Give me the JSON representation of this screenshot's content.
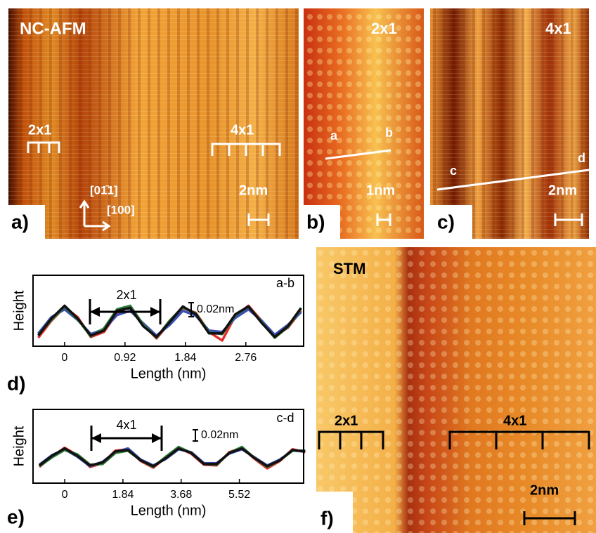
{
  "panels": {
    "a": {
      "letter": "a)",
      "title": "NC-AFM",
      "left_label": "2x1",
      "right_label": "4x1",
      "dir1": "[01̄1]",
      "dir2": "[100]",
      "scale": "2nm"
    },
    "b": {
      "letter": "b)",
      "title": "2x1",
      "start": "a",
      "end": "b",
      "scale": "1nm"
    },
    "c": {
      "letter": "c)",
      "title": "4x1",
      "start": "c",
      "end": "d",
      "scale": "2nm"
    },
    "f": {
      "letter": "f)",
      "title": "STM",
      "left_label": "2x1",
      "right_label": "4x1",
      "scale": "2nm"
    }
  },
  "chart_data": [
    {
      "type": "line",
      "letter": "d)",
      "xlabel": "Length (nm)",
      "ylabel": "Height",
      "annotation": "2x1",
      "scale_label": "0.02nm",
      "pair": "a-b",
      "xlim": [
        -0.48,
        3.64
      ],
      "ylim": [
        0,
        0.1
      ],
      "xticks": [
        0,
        0.92,
        1.84,
        2.76
      ],
      "x": [
        -0.4,
        -0.2,
        0,
        0.2,
        0.4,
        0.6,
        0.8,
        1.0,
        1.2,
        1.4,
        1.6,
        1.8,
        2.0,
        2.2,
        2.4,
        2.6,
        2.8,
        3.0,
        3.2,
        3.4,
        3.6
      ],
      "series": [
        {
          "color": "#e0302a",
          "values": [
            0.012,
            0.036,
            0.055,
            0.041,
            0.013,
            0.02,
            0.047,
            0.056,
            0.03,
            0.011,
            0.033,
            0.054,
            0.047,
            0.02,
            0.008,
            0.043,
            0.057,
            0.036,
            0.014,
            0.026,
            0.05
          ]
        },
        {
          "color": "#3a50b0",
          "values": [
            0.018,
            0.041,
            0.052,
            0.037,
            0.017,
            0.024,
            0.044,
            0.05,
            0.032,
            0.015,
            0.03,
            0.05,
            0.043,
            0.022,
            0.02,
            0.04,
            0.052,
            0.036,
            0.016,
            0.03,
            0.048
          ]
        },
        {
          "color": "#2e7d3a",
          "values": [
            0.016,
            0.037,
            0.056,
            0.038,
            0.014,
            0.025,
            0.052,
            0.057,
            0.03,
            0.012,
            0.036,
            0.055,
            0.046,
            0.019,
            0.017,
            0.044,
            0.056,
            0.034,
            0.012,
            0.027,
            0.053
          ]
        },
        {
          "color": "#111111",
          "values": [
            0.015,
            0.039,
            0.057,
            0.039,
            0.015,
            0.022,
            0.05,
            0.054,
            0.028,
            0.013,
            0.034,
            0.056,
            0.045,
            0.018,
            0.018,
            0.045,
            0.056,
            0.033,
            0.013,
            0.028,
            0.054
          ]
        }
      ]
    },
    {
      "type": "line",
      "letter": "e)",
      "xlabel": "Length (nm)",
      "ylabel": "Height",
      "annotation": "4x1",
      "scale_label": "0.02nm",
      "pair": "c-d",
      "xlim": [
        -1.0,
        7.55
      ],
      "ylim": [
        0,
        0.1
      ],
      "xticks": [
        0,
        1.84,
        3.68,
        5.52
      ],
      "x": [
        -0.8,
        -0.4,
        0,
        0.4,
        0.8,
        1.2,
        1.6,
        2.0,
        2.4,
        2.8,
        3.2,
        3.6,
        4.0,
        4.4,
        4.8,
        5.2,
        5.6,
        6.0,
        6.4,
        6.8,
        7.2,
        7.6
      ],
      "series": [
        {
          "color": "#e0302a",
          "values": [
            0.022,
            0.036,
            0.048,
            0.038,
            0.022,
            0.027,
            0.044,
            0.046,
            0.03,
            0.021,
            0.035,
            0.048,
            0.04,
            0.025,
            0.024,
            0.042,
            0.048,
            0.033,
            0.02,
            0.03,
            0.046,
            0.042
          ]
        },
        {
          "color": "#3a50b0",
          "values": [
            0.025,
            0.038,
            0.046,
            0.036,
            0.023,
            0.029,
            0.042,
            0.047,
            0.032,
            0.024,
            0.033,
            0.046,
            0.042,
            0.027,
            0.027,
            0.04,
            0.046,
            0.035,
            0.024,
            0.032,
            0.044,
            0.043
          ]
        },
        {
          "color": "#2e7d3a",
          "values": [
            0.023,
            0.035,
            0.045,
            0.039,
            0.025,
            0.026,
            0.041,
            0.044,
            0.031,
            0.022,
            0.036,
            0.049,
            0.041,
            0.026,
            0.025,
            0.041,
            0.049,
            0.034,
            0.022,
            0.031,
            0.044,
            0.044
          ]
        },
        {
          "color": "#111111",
          "values": [
            0.024,
            0.037,
            0.047,
            0.037,
            0.024,
            0.028,
            0.043,
            0.045,
            0.031,
            0.023,
            0.034,
            0.047,
            0.041,
            0.026,
            0.026,
            0.041,
            0.047,
            0.034,
            0.023,
            0.031,
            0.045,
            0.043
          ]
        }
      ]
    }
  ]
}
